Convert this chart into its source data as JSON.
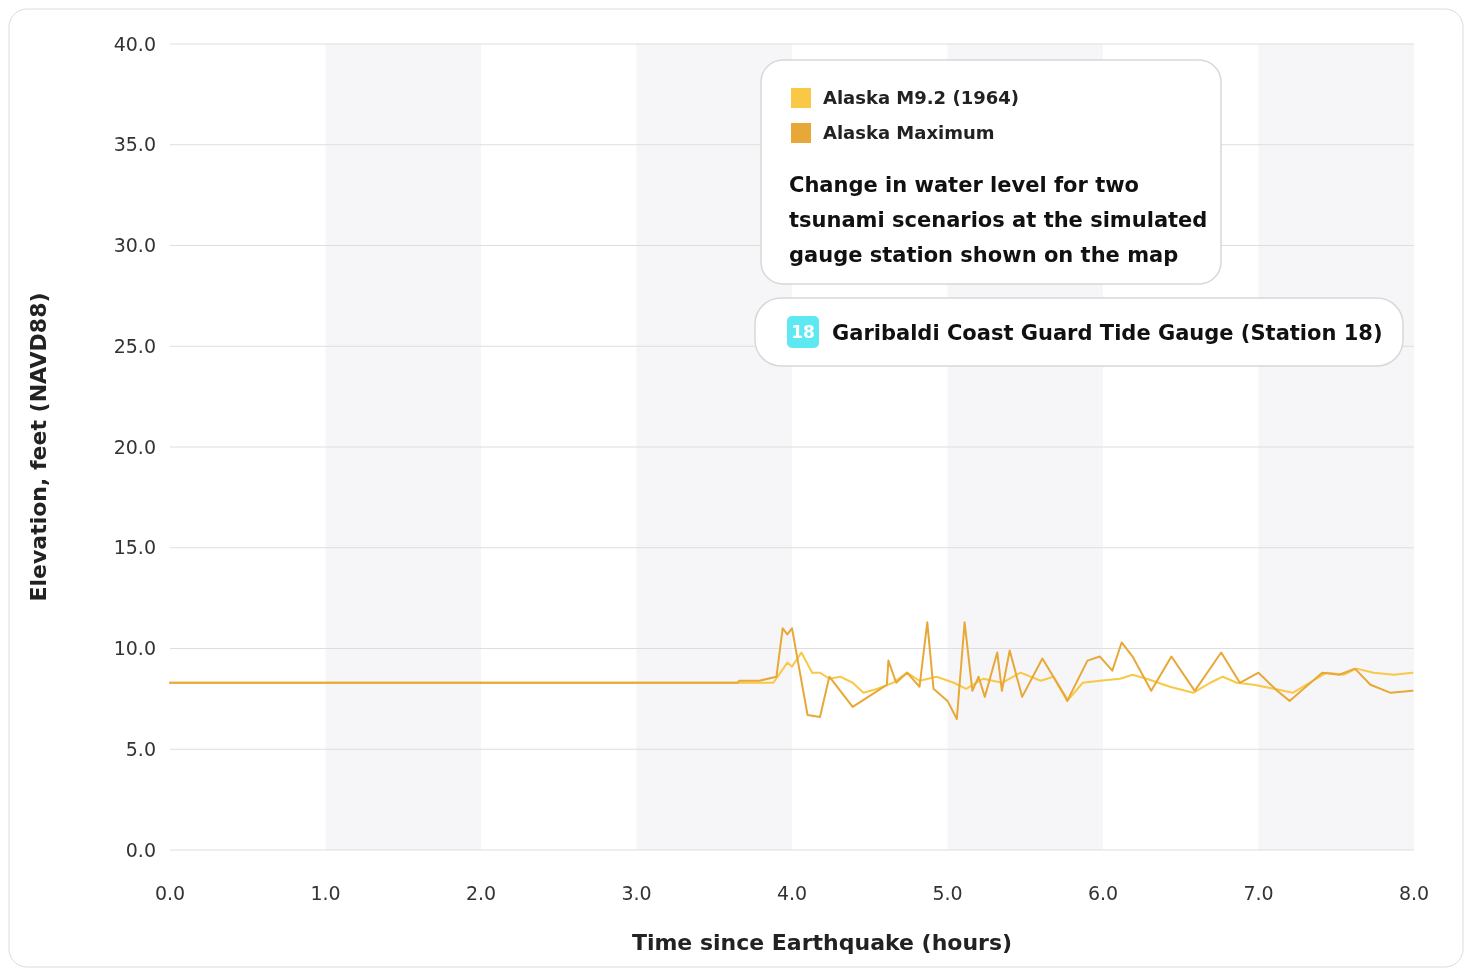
{
  "chart_data": {
    "type": "line",
    "xlabel": "Time since Earthquake (hours)",
    "ylabel": "Elevation, feet (NAVD88)",
    "xlim": [
      0,
      8
    ],
    "ylim": [
      0,
      40
    ],
    "xticks": [
      {
        "value": 0,
        "label": "0.0"
      },
      {
        "value": 1,
        "label": "1.0"
      },
      {
        "value": 2,
        "label": "2.0"
      },
      {
        "value": 3,
        "label": "3.0"
      },
      {
        "value": 4,
        "label": "4.0"
      },
      {
        "value": 5,
        "label": "5.0"
      },
      {
        "value": 6,
        "label": "6.0"
      },
      {
        "value": 7,
        "label": "7.0"
      },
      {
        "value": 8,
        "label": "8.0"
      }
    ],
    "yticks": [
      {
        "value": 0,
        "label": "0.0"
      },
      {
        "value": 5,
        "label": "5.0"
      },
      {
        "value": 10,
        "label": "10.0"
      },
      {
        "value": 15,
        "label": "15.0"
      },
      {
        "value": 20,
        "label": "20.0"
      },
      {
        "value": 25,
        "label": "25.0"
      },
      {
        "value": 30,
        "label": "30.0"
      },
      {
        "value": 35,
        "label": "35.0"
      },
      {
        "value": 40,
        "label": "40.0"
      }
    ],
    "grid": "y",
    "legend": "top right",
    "line_style": "solid",
    "marker": "none",
    "bands": [
      {
        "axis": "x",
        "from": 1,
        "to": 2,
        "color": "#f6f6f8"
      },
      {
        "axis": "x",
        "from": 3,
        "to": 4,
        "color": "#f6f6f8"
      },
      {
        "axis": "x",
        "from": 5,
        "to": 6,
        "color": "#f6f6f8"
      },
      {
        "axis": "x",
        "from": 7,
        "to": 8,
        "color": "#f6f6f8"
      }
    ],
    "annotations": [
      "Change in water level for two tsunami scenarios at the simulated gauge station shown on the map",
      "18",
      "Garibaldi Coast Guard Tide Gauge (Station 18)"
    ],
    "series": [
      {
        "name": "Alaska M9.2 (1964)",
        "color": "#f9c846",
        "x": [
          0,
          3.88,
          3.97,
          4.0,
          4.06,
          4.13,
          4.18,
          4.24,
          4.31,
          4.39,
          4.46,
          4.55,
          4.65,
          4.74,
          4.82,
          4.93,
          5.04,
          5.12,
          5.23,
          5.35,
          5.47,
          5.6,
          5.68,
          5.77,
          5.87,
          5.98,
          6.11,
          6.19,
          6.28,
          6.43,
          6.58,
          6.69,
          6.77,
          6.86,
          6.97,
          7.1,
          7.22,
          7.35,
          7.44,
          7.55,
          7.63,
          7.74,
          7.87,
          7.99
        ],
        "values": [
          8.3,
          8.3,
          9.3,
          9.1,
          9.8,
          8.8,
          8.8,
          8.5,
          8.6,
          8.3,
          7.8,
          8.0,
          8.3,
          8.8,
          8.4,
          8.6,
          8.3,
          8.0,
          8.5,
          8.3,
          8.8,
          8.4,
          8.6,
          7.4,
          8.3,
          8.4,
          8.5,
          8.7,
          8.5,
          8.1,
          7.8,
          8.3,
          8.6,
          8.3,
          8.2,
          8.0,
          7.8,
          8.4,
          8.8,
          8.7,
          9.0,
          8.8,
          8.7,
          8.8
        ]
      },
      {
        "name": "Alaska Maximum",
        "color": "#e8a838",
        "x": [
          0,
          3.65,
          3.66,
          3.79,
          3.9,
          3.94,
          3.97,
          4.0,
          4.1,
          4.18,
          4.24,
          4.39,
          4.55,
          4.61,
          4.62,
          4.67,
          4.74,
          4.82,
          4.87,
          4.91,
          5.0,
          5.06,
          5.11,
          5.16,
          5.2,
          5.24,
          5.32,
          5.35,
          5.4,
          5.48,
          5.61,
          5.76,
          5.77,
          5.9,
          5.98,
          6.06,
          6.12,
          6.19,
          6.31,
          6.44,
          6.59,
          6.76,
          6.88,
          7.0,
          7.12,
          7.2,
          7.29,
          7.41,
          7.52,
          7.62,
          7.72,
          7.85,
          7.99
        ],
        "values": [
          8.3,
          8.3,
          8.4,
          8.4,
          8.6,
          11.0,
          10.7,
          11.0,
          6.7,
          6.6,
          8.6,
          7.1,
          7.9,
          8.2,
          9.4,
          8.3,
          8.8,
          8.1,
          11.3,
          8.0,
          7.4,
          6.5,
          11.3,
          7.9,
          8.6,
          7.6,
          9.8,
          7.9,
          9.9,
          7.6,
          9.5,
          7.6,
          7.4,
          9.4,
          9.6,
          8.9,
          10.3,
          9.6,
          7.9,
          9.6,
          7.9,
          9.8,
          8.3,
          8.8,
          7.9,
          7.4,
          8.0,
          8.8,
          8.7,
          9.0,
          8.2,
          7.8,
          7.9
        ]
      }
    ]
  }
}
